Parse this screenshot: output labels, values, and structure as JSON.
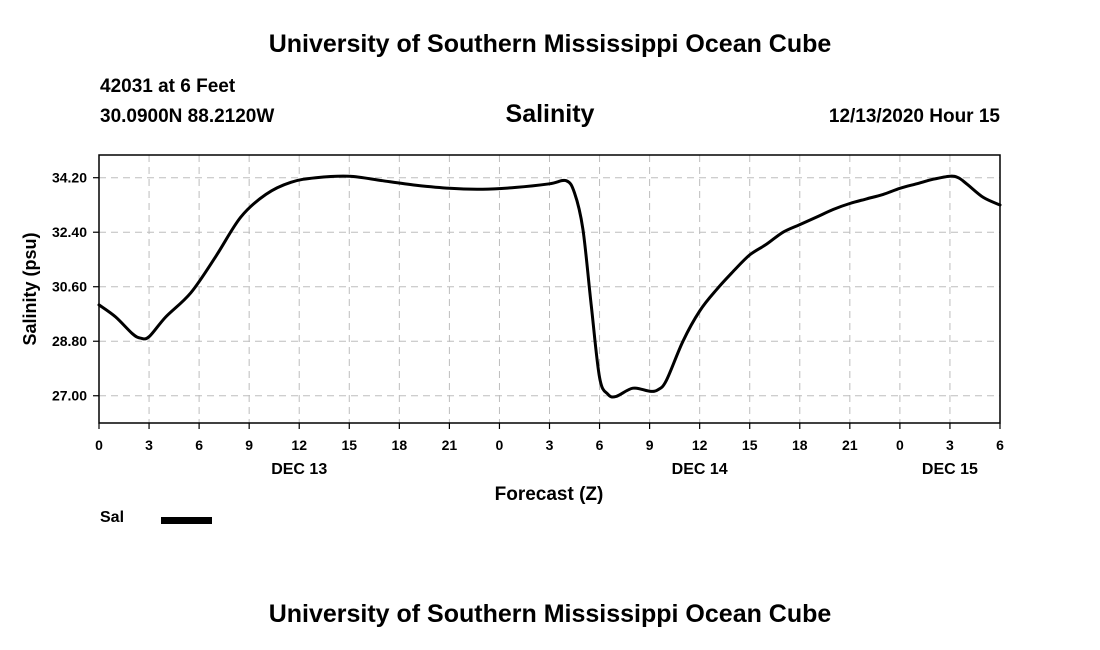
{
  "header": {
    "title": "University of Southern Mississippi Ocean Cube",
    "station": "42031 at 6 Feet",
    "coordinates": "30.0900N 88.2120W",
    "parameter": "Salinity",
    "datetime": "12/13/2020 Hour 15"
  },
  "footer": {
    "title": "University of Southern Mississippi Ocean Cube"
  },
  "legend": {
    "label": "Sal",
    "color": "#000000"
  },
  "chart_data": {
    "type": "line",
    "title": "Salinity",
    "xlabel": "Forecast (Z)",
    "ylabel": "Salinity (psu)",
    "xlim": [
      0,
      54
    ],
    "ylim": [
      26.1,
      34.95
    ],
    "yticks": [
      "34.20",
      "32.40",
      "30.60",
      "28.80",
      "27.00"
    ],
    "ytick_values": [
      34.2,
      32.4,
      30.6,
      28.8,
      27.0
    ],
    "xticks": [
      "0",
      "3",
      "6",
      "9",
      "12",
      "15",
      "18",
      "21",
      "0",
      "3",
      "6",
      "9",
      "12",
      "15",
      "18",
      "21",
      "0",
      "3",
      "6"
    ],
    "xtick_hours": [
      0,
      3,
      6,
      9,
      12,
      15,
      18,
      21,
      24,
      27,
      30,
      33,
      36,
      39,
      42,
      45,
      48,
      51,
      54
    ],
    "day_labels": [
      {
        "label": "DEC 13",
        "hour": 12
      },
      {
        "label": "DEC 14",
        "hour": 36
      },
      {
        "label": "DEC 15",
        "hour": 51
      }
    ],
    "grid": true,
    "series": [
      {
        "name": "Sal",
        "x": [
          0,
          1,
          2,
          2.5,
          3,
          4,
          5.5,
          7,
          8.5,
          10,
          11.5,
          13,
          15,
          17,
          19,
          21,
          23,
          25,
          27,
          28,
          28.5,
          29,
          29.5,
          30,
          30.5,
          31,
          32,
          33,
          33.5,
          34,
          35,
          36,
          37,
          38,
          39,
          40,
          41,
          42,
          43,
          44,
          45,
          46,
          47,
          48,
          49,
          50,
          51,
          51.5,
          52,
          53,
          54
        ],
        "values": [
          30.0,
          29.6,
          29.05,
          28.9,
          28.95,
          29.6,
          30.4,
          31.6,
          32.9,
          33.65,
          34.05,
          34.2,
          34.25,
          34.1,
          33.95,
          33.85,
          33.82,
          33.88,
          34.0,
          34.1,
          33.7,
          32.5,
          30.0,
          27.6,
          27.05,
          26.98,
          27.25,
          27.15,
          27.2,
          27.5,
          28.8,
          29.8,
          30.5,
          31.1,
          31.65,
          32.0,
          32.4,
          32.65,
          32.9,
          33.15,
          33.35,
          33.5,
          33.65,
          33.85,
          34.0,
          34.15,
          34.25,
          34.2,
          34.0,
          33.55,
          33.3
        ]
      }
    ]
  }
}
